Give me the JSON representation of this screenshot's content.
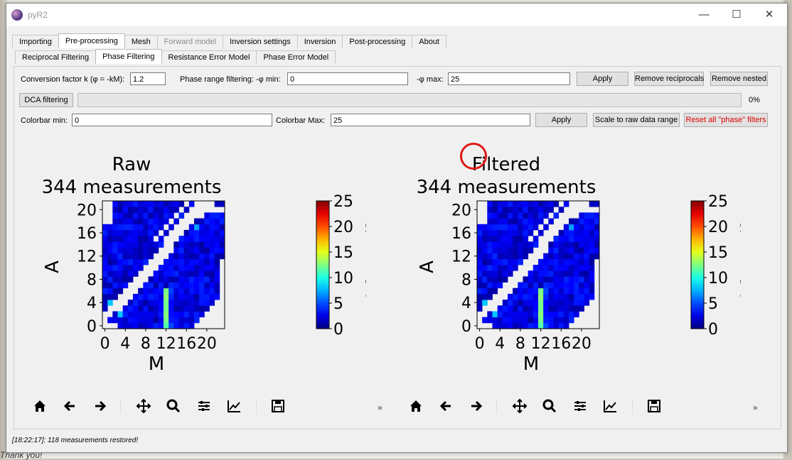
{
  "app": {
    "title": "pyR2"
  },
  "main_tabs": [
    {
      "label": "Importing",
      "state": "normal"
    },
    {
      "label": "Pre-processing",
      "state": "active"
    },
    {
      "label": "Mesh",
      "state": "normal"
    },
    {
      "label": "Forward model",
      "state": "disabled"
    },
    {
      "label": "Inversion settings",
      "state": "normal"
    },
    {
      "label": "Inversion",
      "state": "normal"
    },
    {
      "label": "Post-processing",
      "state": "normal"
    },
    {
      "label": "About",
      "state": "normal"
    }
  ],
  "sub_tabs": [
    {
      "label": "Reciprocal Filtering",
      "state": "normal"
    },
    {
      "label": "Phase Filtering",
      "state": "active"
    },
    {
      "label": "Resistance Error Model",
      "state": "normal"
    },
    {
      "label": "Phase Error Model",
      "state": "normal"
    }
  ],
  "row1": {
    "conversion_label": "Conversion factor k (φ = -kM):",
    "conversion_value": "1.2",
    "range_label": "Phase range filtering:  -φ min:",
    "phi_min_value": "0",
    "phi_max_label": "-φ max:",
    "phi_max_value": "25",
    "apply": "Apply",
    "remove_reciprocals": "Remove reciprocals",
    "remove_nested": "Remove nested"
  },
  "row2": {
    "dca": "DCA filtering",
    "progress_text": "0%",
    "progress_fraction": 0
  },
  "row3": {
    "cmin_label": "Colorbar min:",
    "cmin_value": "0",
    "cmax_label": "Colorbar Max:",
    "cmax_value": "25",
    "apply": "Apply",
    "scale_raw": "Scale to raw data range",
    "reset": "Reset all \"phase\" filters",
    "reset_color": "#e00000"
  },
  "chart_data": [
    {
      "type": "heatmap",
      "title": "Raw",
      "subtitle": "344 measurements",
      "xlabel": "M",
      "ylabel": "A",
      "xticks": [
        "0",
        "4",
        "8",
        "12",
        "16",
        "20"
      ],
      "yticks": [
        "0",
        "4",
        "8",
        "12",
        "16",
        "20"
      ],
      "xlim": [
        0,
        24
      ],
      "ylim": [
        0,
        21
      ],
      "colorbar": {
        "label": "-ϕ [mRad]",
        "ticks": [
          "0",
          "5",
          "10",
          "15",
          "20",
          "25"
        ],
        "range": [
          0,
          25
        ],
        "colormap": "jet"
      }
    },
    {
      "type": "heatmap",
      "title": "Filtered",
      "subtitle": "344 measurements",
      "xlabel": "M",
      "ylabel": "A",
      "xticks": [
        "0",
        "4",
        "8",
        "12",
        "16",
        "20"
      ],
      "yticks": [
        "0",
        "4",
        "8",
        "12",
        "16",
        "20"
      ],
      "xlim": [
        0,
        24
      ],
      "ylim": [
        0,
        21
      ],
      "colorbar": {
        "label": "-ϕ [mRad]",
        "ticks": [
          "0",
          "5",
          "10",
          "15",
          "20",
          "25"
        ],
        "range": [
          0,
          25
        ],
        "colormap": "jet"
      }
    }
  ],
  "toolbar_icons": [
    "home-icon",
    "back-arrow-icon",
    "forward-arrow-icon",
    "pan-icon",
    "zoom-icon",
    "configure-icon",
    "edit-axes-icon",
    "save-icon"
  ],
  "toolbar_overflow": "»",
  "status": "[18:22:17]: 118 measurements restored!",
  "desktop_text": "Thank you!"
}
